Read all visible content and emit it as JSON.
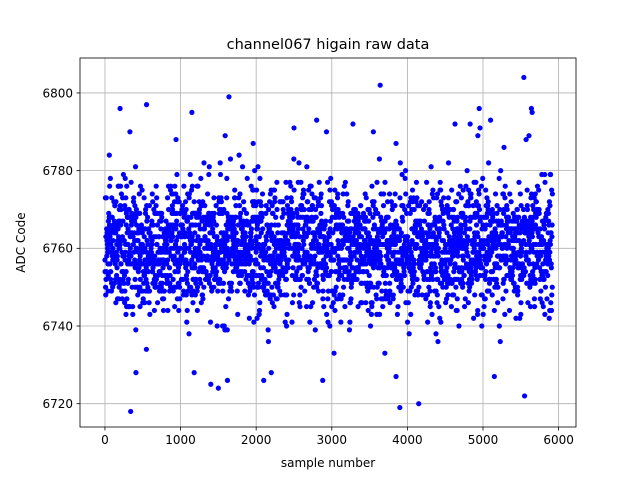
{
  "chart_data": {
    "type": "scatter",
    "title": "channel067 higain raw data",
    "xlabel": "sample number",
    "ylabel": "ADC Code",
    "xlim": [
      -330,
      6230
    ],
    "ylim": [
      6714,
      6809
    ],
    "xticks": [
      0,
      1000,
      2000,
      3000,
      4000,
      5000,
      6000
    ],
    "yticks": [
      6720,
      6740,
      6760,
      6780,
      6800
    ],
    "grid": true,
    "marker_color": "#0000ff",
    "n_samples": 5920,
    "typical_range": [
      6740,
      6780
    ],
    "center": 6760,
    "outliers": [
      {
        "x": 340,
        "y": 6718
      },
      {
        "x": 3900,
        "y": 6719
      },
      {
        "x": 4150,
        "y": 6720
      },
      {
        "x": 5550,
        "y": 6722
      },
      {
        "x": 1500,
        "y": 6724
      },
      {
        "x": 1400,
        "y": 6725
      },
      {
        "x": 2100,
        "y": 6726
      },
      {
        "x": 2880,
        "y": 6726
      },
      {
        "x": 1620,
        "y": 6726
      },
      {
        "x": 3850,
        "y": 6727
      },
      {
        "x": 5150,
        "y": 6727
      },
      {
        "x": 1180,
        "y": 6728
      },
      {
        "x": 2200,
        "y": 6728
      },
      {
        "x": 410,
        "y": 6728
      },
      {
        "x": 3640,
        "y": 6802
      },
      {
        "x": 5540,
        "y": 6804
      },
      {
        "x": 1640,
        "y": 6799
      },
      {
        "x": 550,
        "y": 6797
      },
      {
        "x": 200,
        "y": 6796
      },
      {
        "x": 4950,
        "y": 6796
      },
      {
        "x": 5640,
        "y": 6796
      },
      {
        "x": 1150,
        "y": 6795
      },
      {
        "x": 5650,
        "y": 6795
      },
      {
        "x": 5100,
        "y": 6793
      },
      {
        "x": 2800,
        "y": 6793
      },
      {
        "x": 3280,
        "y": 6792
      },
      {
        "x": 4630,
        "y": 6792
      },
      {
        "x": 4960,
        "y": 6791
      },
      {
        "x": 2500,
        "y": 6791
      },
      {
        "x": 4830,
        "y": 6792
      },
      {
        "x": 330,
        "y": 6790
      },
      {
        "x": 2930,
        "y": 6790
      },
      {
        "x": 3550,
        "y": 6790
      },
      {
        "x": 1590,
        "y": 6789
      },
      {
        "x": 940,
        "y": 6788
      },
      {
        "x": 5570,
        "y": 6788
      },
      {
        "x": 1960,
        "y": 6787
      },
      {
        "x": 3850,
        "y": 6787
      }
    ]
  }
}
